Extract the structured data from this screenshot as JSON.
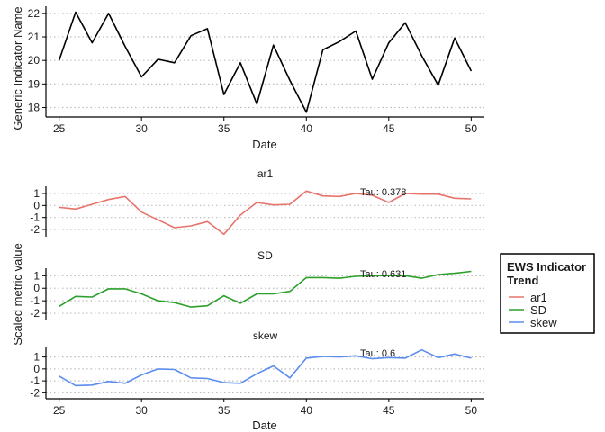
{
  "chart_data": [
    {
      "type": "line",
      "xlabel": "Date",
      "ylabel": "Generic Indicator Name",
      "xlim": [
        24.2,
        50.8
      ],
      "ylim": [
        17.6,
        22.3
      ],
      "xticks": [
        25,
        30,
        35,
        40,
        45,
        50
      ],
      "yticks": [
        18,
        19,
        20,
        21,
        22
      ],
      "grid": "horizontal dotted",
      "line_color": "#000000",
      "series": [
        {
          "x": [
            25,
            26,
            27,
            28,
            29,
            30,
            31,
            32,
            33,
            34,
            35,
            36,
            37,
            38,
            39,
            40,
            41,
            42,
            43,
            44,
            45,
            46,
            47,
            48,
            49,
            50
          ],
          "values": [
            20.0,
            22.05,
            20.75,
            22.0,
            20.6,
            19.3,
            20.05,
            19.9,
            21.05,
            21.35,
            18.55,
            19.9,
            18.15,
            20.65,
            19.15,
            17.8,
            20.45,
            20.8,
            21.25,
            19.2,
            20.75,
            21.6,
            20.2,
            18.95,
            20.95,
            19.55
          ]
        }
      ]
    },
    {
      "type": "line",
      "xlabel": "Date",
      "ylabel": "Scaled metric value",
      "xlim": [
        24.2,
        50.8
      ],
      "xticks": [
        25,
        30,
        35,
        40,
        45,
        50
      ],
      "panels": [
        {
          "title": "ar1",
          "ylim": [
            -2.6,
            1.6
          ],
          "yticks": [
            -2,
            -1,
            0,
            1
          ],
          "annotation": "Tau: 0.378",
          "series_name": "ar1",
          "color": "#E8736B",
          "x": [
            25,
            26,
            27,
            28,
            29,
            30,
            31,
            32,
            33,
            34,
            35,
            36,
            37,
            38,
            39,
            40,
            41,
            42,
            43,
            44,
            45,
            46,
            47,
            48,
            49,
            50
          ],
          "values": [
            -0.15,
            -0.3,
            0.1,
            0.5,
            0.75,
            -0.55,
            -1.2,
            -1.85,
            -1.7,
            -1.35,
            -2.4,
            -0.8,
            0.25,
            0.05,
            0.1,
            1.2,
            0.8,
            0.75,
            1.0,
            0.85,
            0.25,
            1.0,
            0.95,
            0.95,
            0.6,
            0.55
          ]
        },
        {
          "title": "SD",
          "ylim": [
            -2.5,
            1.6
          ],
          "yticks": [
            -2,
            -1,
            0,
            1
          ],
          "annotation": "Tau: 0.631",
          "series_name": "SD",
          "color": "#2CA02C",
          "x": [
            25,
            26,
            27,
            28,
            29,
            30,
            31,
            32,
            33,
            34,
            35,
            36,
            37,
            38,
            39,
            40,
            41,
            42,
            43,
            44,
            45,
            46,
            47,
            48,
            49,
            50
          ],
          "values": [
            -1.45,
            -0.65,
            -0.7,
            -0.05,
            -0.05,
            -0.45,
            -1.0,
            -1.15,
            -1.5,
            -1.4,
            -0.6,
            -1.2,
            -0.45,
            -0.45,
            -0.25,
            0.85,
            0.85,
            0.8,
            0.95,
            1.0,
            1.0,
            1.0,
            0.8,
            1.1,
            1.2,
            1.35
          ]
        },
        {
          "title": "skew",
          "ylim": [
            -2.5,
            1.8
          ],
          "yticks": [
            -2,
            -1,
            0,
            1
          ],
          "annotation": "Tau: 0.6",
          "series_name": "skew",
          "color": "#5B8DEF",
          "x": [
            25,
            26,
            27,
            28,
            29,
            30,
            31,
            32,
            33,
            34,
            35,
            36,
            37,
            38,
            39,
            40,
            41,
            42,
            43,
            44,
            45,
            46,
            47,
            48,
            49,
            50
          ],
          "values": [
            -0.6,
            -1.4,
            -1.35,
            -1.05,
            -1.2,
            -0.5,
            0.0,
            -0.05,
            -0.75,
            -0.8,
            -1.15,
            -1.2,
            -0.4,
            0.25,
            -0.75,
            0.9,
            1.05,
            1.0,
            1.1,
            0.85,
            0.95,
            0.9,
            1.6,
            0.95,
            1.25,
            0.9
          ]
        }
      ],
      "legend": {
        "title_lines": [
          "EWS Indicator",
          "Trend"
        ],
        "position": "right",
        "entries": [
          {
            "label": "ar1",
            "color": "#E8736B"
          },
          {
            "label": "SD",
            "color": "#2CA02C"
          },
          {
            "label": "skew",
            "color": "#5B8DEF"
          }
        ]
      }
    }
  ]
}
